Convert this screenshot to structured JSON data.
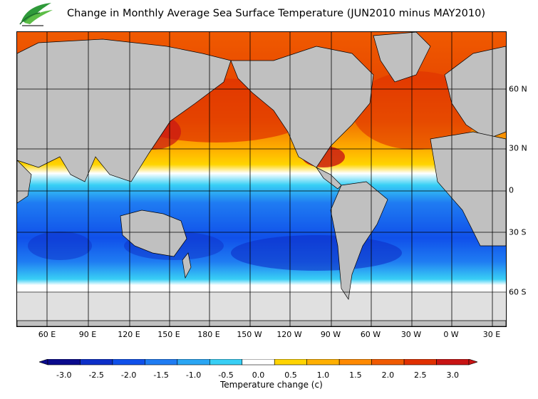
{
  "title": "Change in Monthly Average Sea Surface Temperature (JUN2010 minus MAY2010)",
  "longitude_labels": [
    "60 E",
    "90 E",
    "120 E",
    "150 E",
    "180 E",
    "150 W",
    "120 W",
    "90 W",
    "60 W",
    "30 W",
    "0 W",
    "30 E"
  ],
  "latitude_labels": [
    "60 N",
    "30 N",
    "0",
    "30 S",
    "60 S"
  ],
  "colorbar": {
    "tick_labels": [
      "-3.0",
      "-2.5",
      "-2.0",
      "-1.5",
      "-1.0",
      "-0.5",
      "0.0",
      "0.5",
      "1.0",
      "1.5",
      "2.0",
      "2.5",
      "3.0"
    ],
    "colors": [
      "#0a0a8c",
      "#0d2fc8",
      "#1050ea",
      "#1f7cf2",
      "#2aa6f3",
      "#38cff5",
      "#ffffff",
      "#ffd400",
      "#ffb000",
      "#ff8a00",
      "#f05a00",
      "#e03000",
      "#c81414"
    ],
    "title": "Temperature change  (c)"
  },
  "colors": {
    "land": "#c0c0c0",
    "ice": "#e0e0e0",
    "ocean_none": "#ffffff"
  }
}
